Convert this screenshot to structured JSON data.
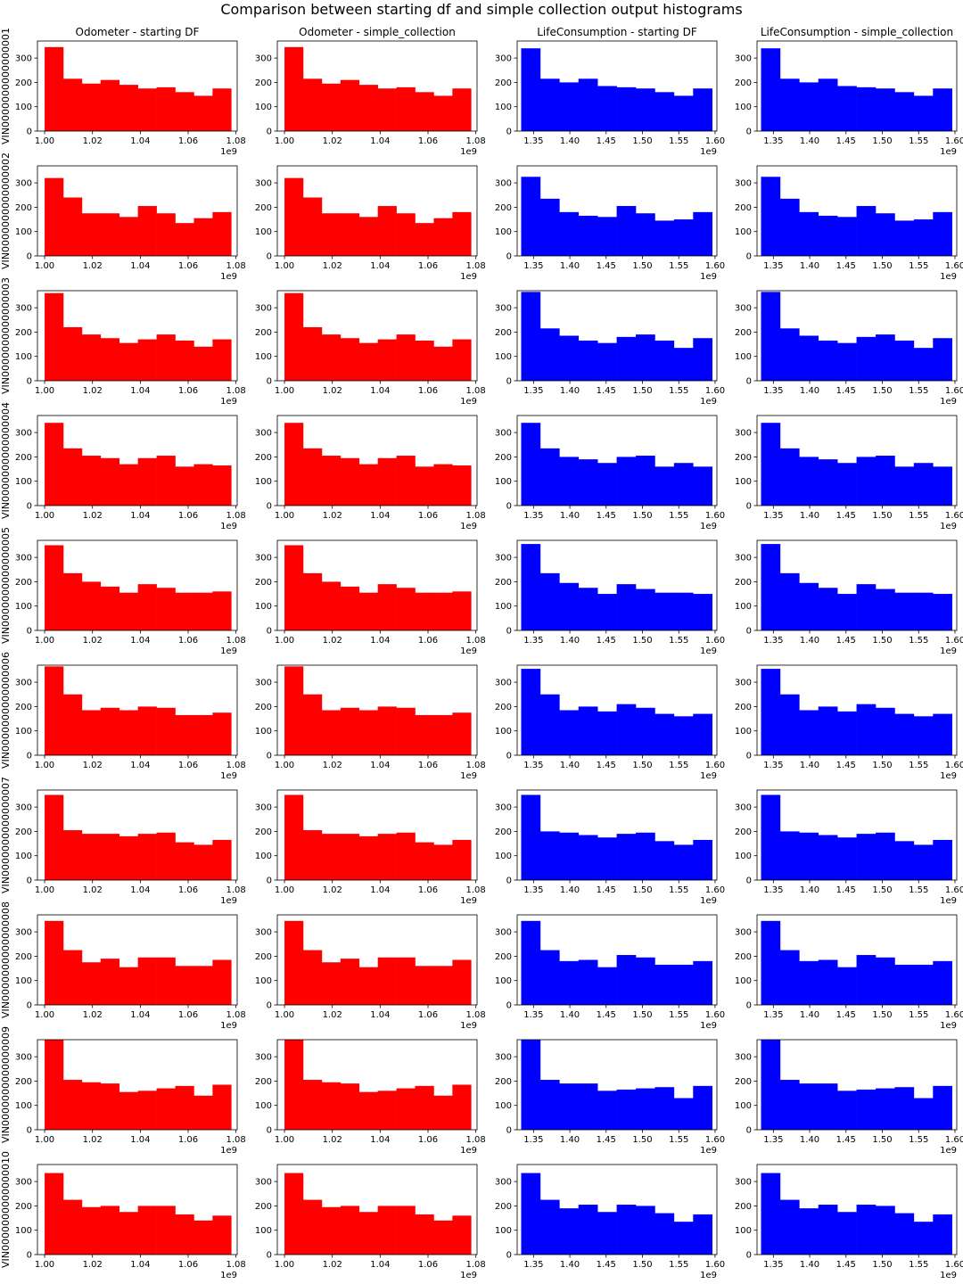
{
  "title": "Comparison between starting df and simple collection output histograms",
  "colors": {
    "odometer": "#ff0000",
    "life": "#0000ff"
  },
  "columns": [
    {
      "title": "Odometer - starting DF",
      "group": "odometer"
    },
    {
      "title": "Odometer - simple_collection",
      "group": "odometer"
    },
    {
      "title": "LifeConsumption - starting DF",
      "group": "life"
    },
    {
      "title": "LifeConsumption - simple_collection",
      "group": "life"
    }
  ],
  "axes": {
    "odometer": {
      "xlim": [
        0.997,
        1.0805
      ],
      "xticks": [
        "1.00",
        "1.02",
        "1.04",
        "1.06",
        "1.08"
      ],
      "xtick_values": [
        1.0,
        1.02,
        1.04,
        1.06,
        1.08
      ],
      "offset": "1e9",
      "bin_range": [
        1.0,
        1.078
      ]
    },
    "life": {
      "xlim": [
        1.3275,
        1.6025
      ],
      "xticks": [
        "1.35",
        "1.40",
        "1.45",
        "1.50",
        "1.55",
        "1.60"
      ],
      "xtick_values": [
        1.35,
        1.4,
        1.45,
        1.5,
        1.55,
        1.6
      ],
      "offset": "1e9",
      "bin_range": [
        1.333,
        1.596
      ]
    },
    "ylim": [
      0,
      370
    ],
    "yticks": [
      "0",
      "100",
      "200",
      "300"
    ],
    "ytick_values": [
      0,
      100,
      200,
      300
    ]
  },
  "chart_data": {
    "type": "bar",
    "bins": 10,
    "rows": [
      {
        "label": "VIN0000000000000001",
        "odometer": [
          345,
          215,
          195,
          210,
          190,
          175,
          180,
          160,
          145,
          175
        ],
        "life": [
          340,
          215,
          200,
          215,
          185,
          180,
          175,
          160,
          145,
          175
        ]
      },
      {
        "label": "VIN0000000000000002",
        "odometer": [
          320,
          240,
          175,
          175,
          160,
          205,
          175,
          135,
          155,
          180
        ],
        "life": [
          325,
          235,
          180,
          165,
          160,
          205,
          175,
          145,
          150,
          180
        ]
      },
      {
        "label": "VIN0000000000000003",
        "odometer": [
          360,
          220,
          190,
          175,
          155,
          170,
          190,
          165,
          140,
          170
        ],
        "life": [
          365,
          215,
          185,
          165,
          155,
          180,
          190,
          165,
          135,
          175
        ]
      },
      {
        "label": "VIN0000000000000004",
        "odometer": [
          340,
          235,
          205,
          195,
          170,
          195,
          205,
          160,
          170,
          165
        ],
        "life": [
          340,
          235,
          200,
          190,
          175,
          200,
          205,
          160,
          175,
          160
        ]
      },
      {
        "label": "VIN0000000000000005",
        "odometer": [
          350,
          235,
          200,
          180,
          155,
          190,
          175,
          155,
          155,
          160
        ],
        "life": [
          355,
          235,
          195,
          175,
          150,
          190,
          170,
          155,
          155,
          150
        ]
      },
      {
        "label": "VIN0000000000000006",
        "odometer": [
          365,
          250,
          185,
          195,
          185,
          200,
          195,
          165,
          165,
          175
        ],
        "life": [
          355,
          250,
          185,
          200,
          180,
          210,
          195,
          170,
          160,
          170
        ]
      },
      {
        "label": "VIN0000000000000007",
        "odometer": [
          350,
          205,
          190,
          190,
          180,
          190,
          195,
          155,
          145,
          165
        ],
        "life": [
          350,
          200,
          195,
          185,
          175,
          190,
          195,
          160,
          145,
          165
        ]
      },
      {
        "label": "VIN0000000000000008",
        "odometer": [
          345,
          225,
          175,
          190,
          155,
          195,
          195,
          160,
          160,
          185
        ],
        "life": [
          345,
          225,
          180,
          185,
          155,
          205,
          195,
          165,
          165,
          180
        ]
      },
      {
        "label": "VIN0000000000000009",
        "odometer": [
          370,
          205,
          195,
          190,
          155,
          160,
          170,
          180,
          140,
          185
        ],
        "life": [
          370,
          205,
          190,
          190,
          160,
          165,
          170,
          175,
          130,
          180
        ]
      },
      {
        "label": "VIN0000000000000010",
        "odometer": [
          335,
          225,
          195,
          200,
          175,
          200,
          200,
          165,
          140,
          160
        ],
        "life": [
          335,
          225,
          190,
          205,
          175,
          205,
          200,
          170,
          135,
          165
        ]
      }
    ]
  }
}
